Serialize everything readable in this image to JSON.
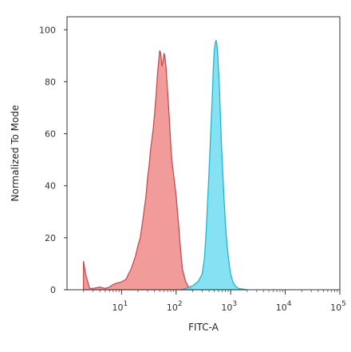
{
  "chart_data": {
    "type": "area",
    "xlabel": "FITC-A",
    "ylabel": "Normalized To Mode",
    "x_scale": "log",
    "xlim": [
      1,
      100000
    ],
    "ylim": [
      0,
      105
    ],
    "y_ticks": [
      0,
      20,
      40,
      60,
      80,
      100
    ],
    "y_tick_labels": [
      "0",
      "20",
      "40",
      "60",
      "80",
      "100"
    ],
    "x_ticks": [
      10,
      100,
      1000,
      10000,
      100000
    ],
    "x_tick_base": "10",
    "x_tick_exponents": [
      "1",
      "2",
      "3",
      "4",
      "5"
    ],
    "grid": false,
    "legend": "none",
    "series": [
      {
        "fill": "#f08a8a",
        "stroke": "#c84c4c",
        "x": [
          2,
          2.2,
          2.4,
          2.6,
          3,
          4,
          5,
          6,
          7,
          8,
          10,
          12,
          15,
          18,
          20,
          22,
          25,
          28,
          30,
          32,
          34,
          36,
          38,
          40,
          43,
          46,
          48,
          50,
          52,
          55,
          58,
          60,
          62,
          65,
          68,
          72,
          76,
          80,
          85,
          90,
          95,
          100,
          110,
          120,
          130,
          150,
          170,
          190,
          200
        ],
        "y": [
          11,
          6,
          3,
          0.5,
          0.5,
          1,
          0.5,
          1,
          2,
          2.5,
          3,
          4,
          8,
          13,
          17,
          20,
          28,
          36,
          43,
          48,
          54,
          58,
          62,
          67,
          75,
          84,
          88,
          92,
          91,
          86,
          88,
          91,
          90,
          86,
          80,
          72,
          64,
          55,
          48,
          44,
          40,
          36,
          26,
          16,
          8,
          3,
          1,
          0.5,
          0
        ]
      },
      {
        "fill": "#70ddf0",
        "stroke": "#22b4cf",
        "x": [
          120,
          150,
          200,
          250,
          300,
          330,
          360,
          400,
          430,
          460,
          480,
          500,
          520,
          540,
          560,
          580,
          600,
          620,
          650,
          680,
          720,
          760,
          800,
          850,
          900,
          950,
          1000,
          1100,
          1200,
          1400,
          1700,
          2000
        ],
        "y": [
          0,
          0.5,
          1.5,
          3,
          6,
          12,
          25,
          45,
          60,
          74,
          85,
          92,
          95,
          96,
          94,
          90,
          84,
          78,
          66,
          55,
          44,
          34,
          25,
          18,
          13,
          9,
          6,
          3,
          1.5,
          0.5,
          0.2,
          0
        ]
      }
    ]
  }
}
